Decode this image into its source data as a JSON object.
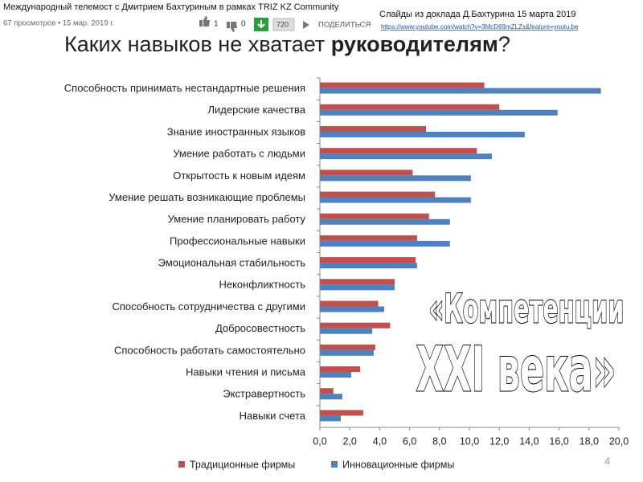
{
  "header": {
    "video_title": "Международный телемост с Дмитрием Бахтуриным в рамках TRIZ KZ Community",
    "meta": "67 просмотров • 15 мар. 2019 г.",
    "likes": "1",
    "dislikes": "0",
    "quality": "720",
    "share": "ПОДЕЛИТЬСЯ"
  },
  "note": {
    "text": "Слайды из доклада Д.Бахтурина 15 марта 2019",
    "link": "https://www.youtube.com/watch?v=3McD69mZLZs&feature=youtu.be"
  },
  "title_parts": [
    "Каких навыков не хватает ",
    "руководителям",
    "?"
  ],
  "overlay": [
    "«Компетенции",
    "XXI века»"
  ],
  "page_number": "4",
  "chart_data": {
    "type": "hbar",
    "categories": [
      "Способность принимать нестандартные решения",
      "Лидерские качества",
      "Знание иностранных языков",
      "Умение работать с людьми",
      "Открытость к новым идеям",
      "Умение решать возникающие  проблемы",
      "Умение планировать работу",
      "Профессиональные  навыки",
      "Эмоциональная стабильность",
      "Неконфликтность",
      "Способность сотрудничества с другими",
      "Добросовестность",
      "Способность работать самостоятельно",
      "Навыки чтения и письма",
      "Экстравертность",
      "Навыки счета"
    ],
    "series": [
      {
        "name": "Традиционные фирмы",
        "color": "#c0504d",
        "values": [
          11.0,
          12.0,
          7.1,
          10.5,
          6.2,
          7.7,
          7.3,
          6.5,
          6.4,
          5.0,
          3.9,
          4.7,
          3.7,
          2.7,
          0.9,
          2.9
        ]
      },
      {
        "name": "Инновационные фирмы",
        "color": "#4f81bd",
        "values": [
          18.8,
          15.9,
          13.7,
          11.5,
          10.1,
          10.1,
          8.7,
          8.7,
          6.5,
          5.0,
          4.3,
          3.5,
          3.6,
          2.1,
          1.5,
          1.4
        ]
      }
    ],
    "xlim": [
      0,
      20
    ],
    "xticks": [
      {
        "value": 0,
        "label": "0,0"
      },
      {
        "value": 2,
        "label": "2,0"
      },
      {
        "value": 4,
        "label": "4,0"
      },
      {
        "value": 6,
        "label": "6,0"
      },
      {
        "value": 8,
        "label": "8,0"
      },
      {
        "value": 10,
        "label": "10,0"
      },
      {
        "value": 12,
        "label": "12,0"
      },
      {
        "value": 14,
        "label": "14,0"
      },
      {
        "value": 16,
        "label": "16,0"
      },
      {
        "value": 18,
        "label": "18,0"
      },
      {
        "value": 20,
        "label": "20,0"
      }
    ],
    "grid": false,
    "legend": "bottom"
  }
}
